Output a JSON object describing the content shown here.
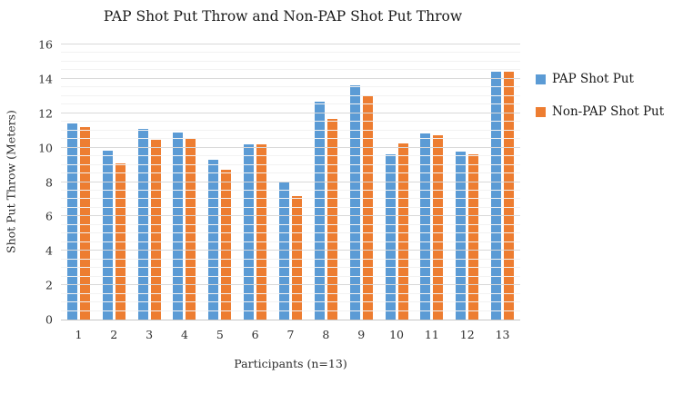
{
  "chart_data": {
    "type": "bar",
    "title": "PAP Shot Put Throw and Non-PAP Shot Put Throw",
    "xlabel": "Participants (n=13)",
    "ylabel": "Shot Put Throw (Meters)",
    "categories": [
      "1",
      "2",
      "3",
      "4",
      "5",
      "6",
      "7",
      "8",
      "9",
      "10",
      "11",
      "12",
      "13"
    ],
    "series": [
      {
        "name": "PAP Shot Put",
        "color": "#5B9BD5",
        "values": [
          11.4,
          9.8,
          11.1,
          10.9,
          9.3,
          10.2,
          8.0,
          12.7,
          13.6,
          9.6,
          10.8,
          9.75,
          14.4
        ]
      },
      {
        "name": "Non-PAP Shot Put",
        "color": "#ED7D31",
        "values": [
          11.2,
          9.1,
          10.45,
          10.55,
          8.7,
          10.2,
          7.2,
          11.65,
          13.0,
          10.25,
          10.7,
          9.6,
          14.4
        ]
      }
    ],
    "ylim": [
      0,
      16
    ],
    "yticks": [
      0,
      2,
      4,
      6,
      8,
      10,
      12,
      14,
      16
    ],
    "y_major_unit": 2,
    "y_minor_unit": 0.5,
    "grid": "major+minor horizontal",
    "legend_position": "right",
    "grid_major_color": "#d9d9d9",
    "grid_minor_color": "#f2f2f2",
    "axis_line_color": "#c6c6c6",
    "background_color": "#ffffff"
  }
}
